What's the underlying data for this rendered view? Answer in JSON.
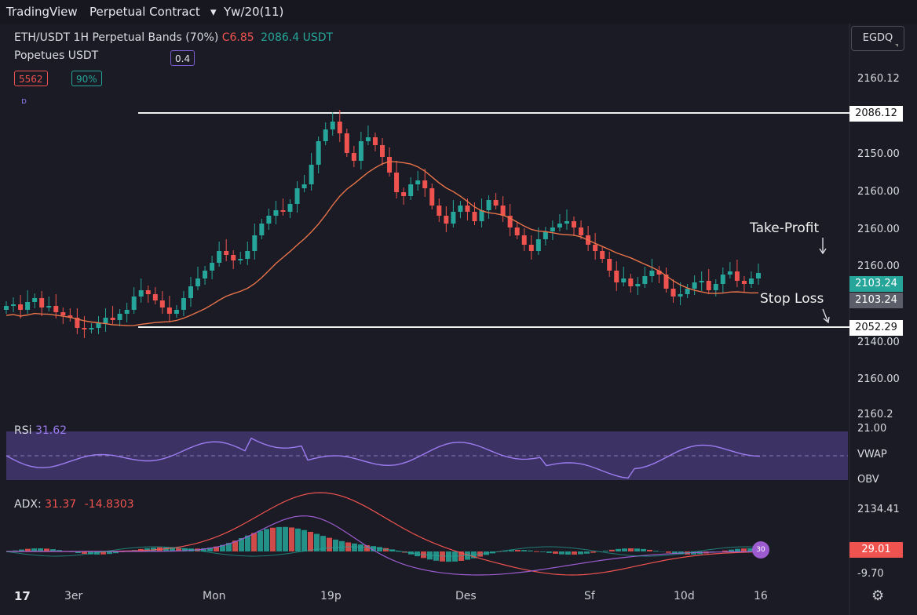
{
  "topbar": {
    "brand": "TradingView",
    "contract": "Perpetual Contract",
    "timeframe": "Yw/20(11)"
  },
  "legend": {
    "symbol": "ETH/USDT 1H Perpetual Bands",
    "pct": "(70%)",
    "change": "C6.85",
    "price": "2086.4 USDT",
    "line2": "Popetues USDT",
    "badge": "0.4",
    "chip_red": "5562",
    "chip_green": "90%",
    "small_icon": "ɒ"
  },
  "corner_button": "EGDQ",
  "price_axis": [
    {
      "label": "2160.12",
      "y": 102
    },
    {
      "label": "2150.00",
      "y": 198
    },
    {
      "label": "2160.00",
      "y": 246
    },
    {
      "label": "2160.00",
      "y": 294
    },
    {
      "label": "2160.00",
      "y": 341
    },
    {
      "label": "2140.00",
      "y": 438
    },
    {
      "label": "2160.00",
      "y": 485
    },
    {
      "label": "2160.2",
      "y": 530
    }
  ],
  "levels": {
    "upper": "2086.12",
    "lower": "2052.29",
    "current": "2103.24",
    "current2": "2103.24",
    "take_profit": "Take-Profit",
    "stop_loss": "Stop Loss"
  },
  "rsi": {
    "label": "RSi",
    "value": "31.62",
    "axis_top": "21.00",
    "axis_mid": "VWAP",
    "axis_bot": "OBV"
  },
  "adx": {
    "label": "ADX:",
    "value1": "31.37",
    "value2": "-14.8303",
    "axis_top": "2134.41",
    "tag": "29.01",
    "axis_bot": "-9.70",
    "marker": "30"
  },
  "time_axis": [
    "3er",
    "Mon",
    "19p",
    "Des",
    "Sf",
    "10d",
    "16"
  ],
  "bottom_left": "17",
  "colors": {
    "up": "#26a69a",
    "down": "#ef5350",
    "ma": "#e8734a",
    "rsi_line": "#9c7cf0",
    "rsi_band": "#4a3b7a",
    "bg": "#1a1b24"
  }
}
